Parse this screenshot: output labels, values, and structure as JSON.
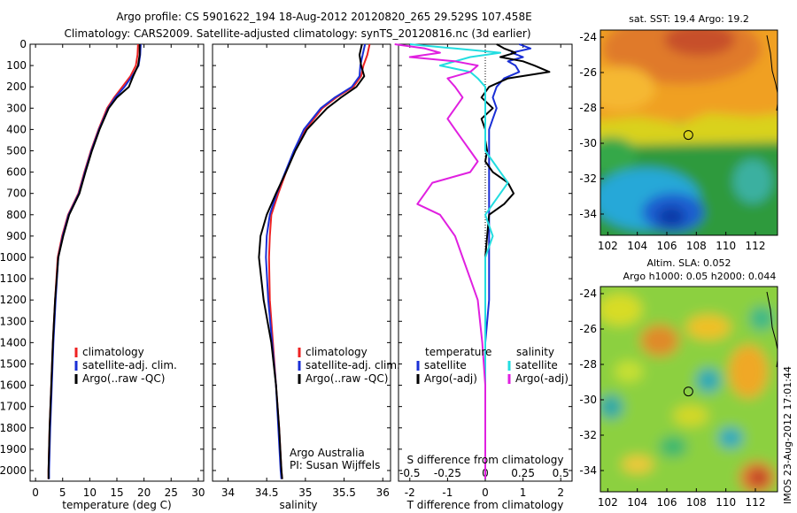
{
  "header": {
    "line1": "Argo profile: CS 5901622_194 18-Aug-2012 20120820_265 29.529S 107.458E",
    "line2": "Climatology: CARS2009. Satellite-adjusted climatology: synTS_20120816.nc (3d earlier)"
  },
  "side_label": "IMOS 23-Aug-2012 17:01:44",
  "colors": {
    "clim": "#ee2222",
    "sat": "#1a2fd6",
    "argo": "#000000",
    "sat_s": "#22dde0",
    "argo_s": "#e020e0"
  },
  "chart_data": [
    {
      "type": "line",
      "name": "temperature-profile",
      "xlabel": "temperature (deg C)",
      "xlim": [
        -1,
        31
      ],
      "ylim": [
        2050,
        0
      ],
      "xticks": [
        "0",
        "5",
        "10",
        "15",
        "20",
        "25",
        "30"
      ],
      "yticks": [
        "0",
        "100",
        "200",
        "300",
        "400",
        "500",
        "600",
        "700",
        "800",
        "900",
        "1000",
        "1100",
        "1200",
        "1300",
        "1400",
        "1500",
        "1600",
        "1700",
        "1800",
        "1900",
        "2000"
      ],
      "legend": [
        "climatology",
        "satellite-adj. clim.",
        "Argo(..raw -QC)"
      ],
      "depth": [
        0,
        50,
        100,
        150,
        200,
        250,
        300,
        400,
        500,
        600,
        700,
        800,
        900,
        1000,
        1200,
        1400,
        1600,
        1800,
        2000,
        2040
      ],
      "series": [
        {
          "name": "climatology",
          "x": [
            18.9,
            18.8,
            18.5,
            17.5,
            16.0,
            14.5,
            13.2,
            11.6,
            10.2,
            9.0,
            7.9,
            6.0,
            4.9,
            4.1,
            3.6,
            3.2,
            2.9,
            2.6,
            2.4,
            2.4
          ]
        },
        {
          "name": "satellite-adj. clim.",
          "x": [
            19.4,
            19.3,
            19.0,
            17.8,
            16.4,
            14.7,
            13.4,
            11.7,
            10.3,
            9.1,
            8.0,
            6.1,
            5.0,
            4.2,
            3.7,
            3.3,
            3.0,
            2.7,
            2.5,
            2.5
          ]
        },
        {
          "name": "Argo(..raw -QC)",
          "x": [
            19.2,
            19.2,
            18.9,
            18.0,
            17.2,
            15.0,
            13.5,
            11.8,
            10.4,
            9.2,
            8.1,
            6.2,
            5.1,
            4.2,
            3.6,
            3.2,
            2.9,
            2.6,
            2.4,
            2.4
          ]
        }
      ]
    },
    {
      "type": "line",
      "name": "salinity-profile",
      "xlabel": "salinity",
      "xlim": [
        33.8,
        36.1
      ],
      "ylim": [
        2050,
        0
      ],
      "xticks": [
        "34",
        "34.5",
        "35",
        "35.5",
        "36"
      ],
      "legend": [
        "climatology",
        "satellite-adj. clim.",
        "Argo(..raw -QC)"
      ],
      "note1": "Argo Australia",
      "note2": "PI: Susan Wijffels",
      "depth": [
        0,
        50,
        100,
        150,
        200,
        250,
        300,
        400,
        500,
        600,
        700,
        800,
        900,
        1000,
        1200,
        1400,
        1600,
        1800,
        2000,
        2040
      ],
      "series": [
        {
          "name": "climatology",
          "x": [
            35.83,
            35.8,
            35.75,
            35.72,
            35.62,
            35.4,
            35.22,
            35.0,
            34.86,
            34.75,
            34.65,
            34.56,
            34.54,
            34.53,
            34.54,
            34.58,
            34.62,
            34.66,
            34.69,
            34.7
          ]
        },
        {
          "name": "satellite-adj. clim.",
          "x": [
            35.77,
            35.74,
            35.71,
            35.7,
            35.6,
            35.38,
            35.2,
            34.98,
            34.85,
            34.74,
            34.63,
            34.54,
            34.5,
            34.49,
            34.52,
            34.57,
            34.62,
            34.65,
            34.68,
            34.69
          ]
        },
        {
          "name": "Argo(..raw -QC)",
          "x": [
            35.73,
            35.7,
            35.72,
            35.76,
            35.66,
            35.46,
            35.28,
            35.02,
            34.87,
            34.75,
            34.62,
            34.5,
            34.42,
            34.4,
            34.46,
            34.56,
            34.62,
            34.66,
            34.69,
            34.7
          ]
        }
      ]
    },
    {
      "type": "line",
      "name": "difference-profile",
      "xlabel": "T difference from climatology",
      "xlabel2": "S difference from climatology",
      "xlim": [
        -2.3,
        2.3
      ],
      "ylim": [
        2050,
        0
      ],
      "xticks": [
        "-2",
        "-1",
        "0",
        "1",
        "2"
      ],
      "xticks2": [
        "-0.5",
        "-0.25",
        "0",
        "0.25",
        "0.5"
      ],
      "legend_titles": [
        "temperature",
        "salinity"
      ],
      "legend": [
        "satellite",
        "Argo(-adj)",
        "satellite",
        "Argo(-adj)"
      ],
      "depth": [
        0,
        20,
        40,
        60,
        80,
        100,
        130,
        160,
        200,
        250,
        300,
        350,
        400,
        450,
        500,
        550,
        600,
        650,
        700,
        750,
        800,
        900,
        1000,
        1100,
        1200,
        1400,
        1600,
        1800,
        2000,
        2040
      ],
      "series": [
        {
          "name": "temperature satellite",
          "x": [
            0.9,
            1.2,
            0.7,
            1.0,
            0.6,
            0.8,
            0.9,
            0.5,
            0.3,
            0.2,
            0.3,
            0.2,
            0.1,
            0.1,
            0.1,
            0.1,
            0.1,
            0.1,
            0.1,
            0.1,
            0.1,
            0.1,
            0.1,
            0.1,
            0.1,
            0.0,
            0.0,
            0.0,
            0.0,
            0.0
          ]
        },
        {
          "name": "temperature Argo(-adj)",
          "x": [
            0.3,
            0.5,
            0.8,
            0.4,
            1.0,
            1.3,
            1.7,
            0.6,
            0.1,
            -0.1,
            0.2,
            -0.1,
            0.0,
            0.0,
            0.05,
            0.0,
            0.2,
            0.6,
            0.75,
            0.5,
            0.1,
            0.05,
            0.0,
            0.0,
            0.0,
            0.0,
            0.0,
            0.0,
            0.0,
            0.0
          ]
        },
        {
          "name": "salinity satellite",
          "x": [
            -0.5,
            -0.2,
            0.1,
            -0.1,
            -0.2,
            -0.3,
            -0.1,
            -0.05,
            0.0,
            0.0,
            0.0,
            0.0,
            0.0,
            0.0,
            0.0,
            0.05,
            0.1,
            0.15,
            0.1,
            0.05,
            0.0,
            0.05,
            0.0,
            0.0,
            0.0,
            0.0,
            0.0,
            0.0,
            0.0,
            0.0
          ]
        },
        {
          "name": "salinity Argo(-adj)",
          "x": [
            -0.6,
            -0.4,
            -0.3,
            -0.5,
            -0.2,
            -0.05,
            -0.1,
            -0.25,
            -0.2,
            -0.15,
            -0.2,
            -0.25,
            -0.2,
            -0.15,
            -0.1,
            -0.05,
            -0.1,
            -0.35,
            -0.4,
            -0.45,
            -0.3,
            -0.2,
            -0.15,
            -0.1,
            -0.05,
            -0.02,
            0.0,
            0.0,
            0.0,
            0.0
          ]
        }
      ]
    },
    {
      "type": "heatmap",
      "name": "sst-map",
      "title": "sat. SST: 19.4  Argo: 19.2",
      "xticks": [
        "102",
        "104",
        "106",
        "108",
        "110",
        "112"
      ],
      "yticks": [
        "-24",
        "-26",
        "-28",
        "-30",
        "-32",
        "-34"
      ],
      "xlim": [
        101.5,
        113.5
      ],
      "ylim": [
        -35.2,
        -23.6
      ],
      "argo_position": [
        107.46,
        -29.53
      ]
    },
    {
      "type": "heatmap",
      "name": "sla-map",
      "title": "Altim. SLA: 0.052",
      "subtitle": "Argo h1000: 0.05 h2000: 0.044",
      "xticks": [
        "102",
        "104",
        "106",
        "108",
        "110",
        "112"
      ],
      "yticks": [
        "-24",
        "-26",
        "-28",
        "-30",
        "-32",
        "-34"
      ],
      "xlim": [
        101.5,
        113.5
      ],
      "ylim": [
        -35.2,
        -23.6
      ],
      "argo_position": [
        107.46,
        -29.53
      ]
    }
  ]
}
